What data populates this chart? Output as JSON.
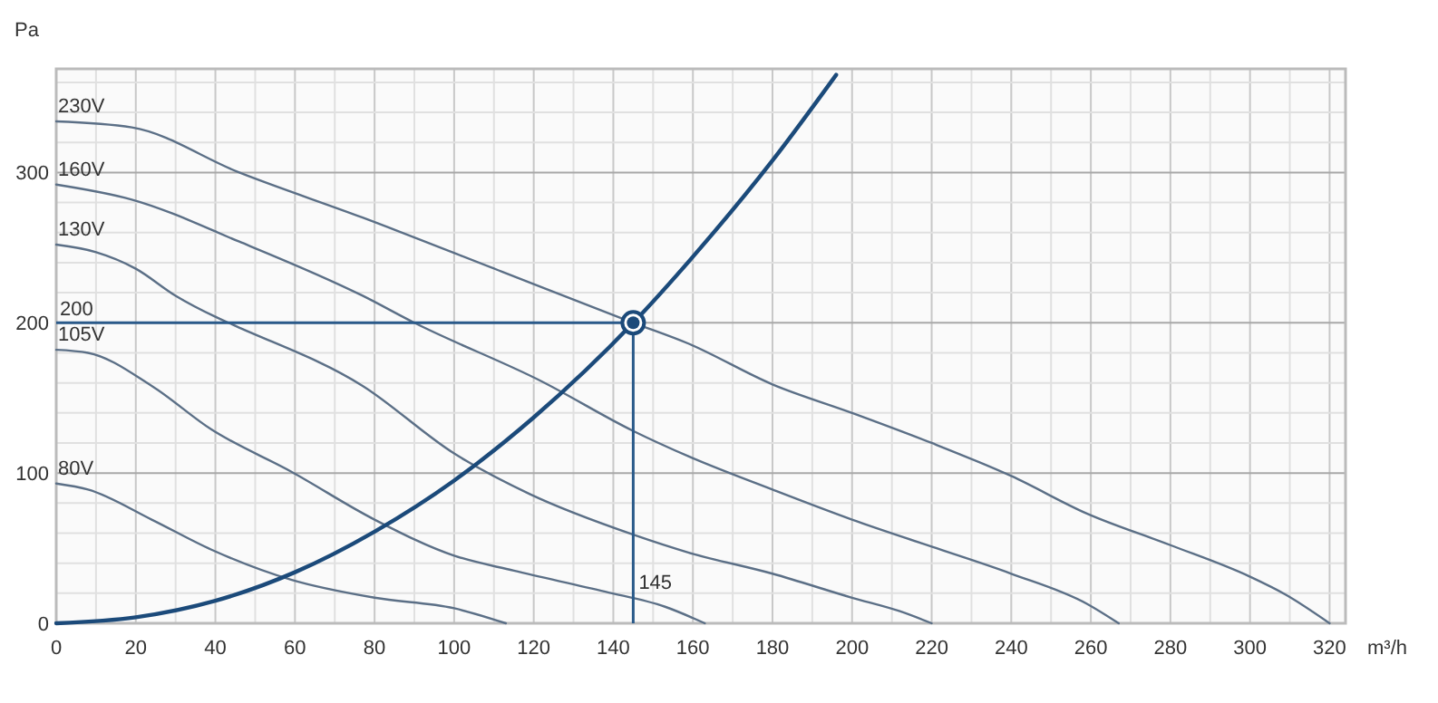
{
  "chart_data": {
    "type": "line",
    "xlabel": "m³/h",
    "ylabel": "Pa",
    "xlim": [
      0,
      324
    ],
    "ylim": [
      0,
      369
    ],
    "xticks": [
      0,
      {
        "value": 10,
        "label": null
      },
      20,
      {
        "value": 30,
        "label": null
      },
      40,
      {
        "value": 50,
        "label": null
      },
      60,
      {
        "value": 70,
        "label": null
      },
      80,
      {
        "value": 90,
        "label": null
      },
      100,
      {
        "value": 110,
        "label": null
      },
      120,
      {
        "value": 130,
        "label": null
      },
      140,
      {
        "value": 150,
        "label": null
      },
      160,
      {
        "value": 170,
        "label": null
      },
      180,
      {
        "value": 190,
        "label": null
      },
      200,
      {
        "value": 210,
        "label": null
      },
      220,
      {
        "value": 230,
        "label": null
      },
      240,
      {
        "value": 250,
        "label": null
      },
      260,
      {
        "value": 270,
        "label": null
      },
      280,
      {
        "value": 290,
        "label": null
      },
      300,
      {
        "value": 310,
        "label": null
      },
      320
    ],
    "yticks": [
      0,
      {
        "value": 20,
        "label": null
      },
      {
        "value": 40,
        "label": null
      },
      {
        "value": 60,
        "label": null
      },
      {
        "value": 80,
        "label": null
      },
      100,
      {
        "value": 120,
        "label": null
      },
      {
        "value": 140,
        "label": null
      },
      {
        "value": 160,
        "label": null
      },
      {
        "value": 180,
        "label": null
      },
      200,
      {
        "value": 220,
        "label": null
      },
      {
        "value": 240,
        "label": null
      },
      {
        "value": 260,
        "label": null
      },
      {
        "value": 280,
        "label": null
      },
      300,
      {
        "value": 320,
        "label": null
      },
      {
        "value": 340,
        "label": null
      },
      {
        "value": 360,
        "label": null
      }
    ],
    "grid": true,
    "marker": "none",
    "line_style": "solid",
    "series": [
      {
        "name": "230V",
        "color": "#5b6f86",
        "x": [
          0,
          19,
          46,
          77,
          112,
          145,
          159,
          180,
          200,
          220,
          240,
          259,
          280,
          300,
          309,
          320
        ],
        "values": [
          334,
          330,
          300,
          270,
          234,
          200,
          186,
          159,
          140,
          120,
          98,
          73,
          52,
          31,
          19,
          0
        ]
      },
      {
        "name": "160V",
        "color": "#5b6f86",
        "x": [
          0,
          19,
          46,
          77,
          90,
          122,
          145,
          159,
          180,
          200,
          220,
          240,
          259,
          267
        ],
        "values": [
          292,
          282,
          254,
          218,
          200,
          161,
          128,
          111,
          89,
          69,
          51,
          33,
          13,
          0
        ]
      },
      {
        "name": "130V",
        "color": "#5b6f86",
        "x": [
          0,
          10,
          20,
          30,
          40,
          45,
          77,
          100,
          119,
          145,
          159,
          180,
          200,
          212,
          220
        ],
        "values": [
          252,
          247,
          236,
          218,
          204,
          198,
          158,
          113,
          86,
          59,
          47,
          33,
          17,
          8,
          0
        ]
      },
      {
        "name": "105V",
        "color": "#5b6f86",
        "x": [
          0,
          8,
          24,
          39,
          59,
          80,
          100,
          115,
          138,
          153,
          163
        ],
        "values": [
          182,
          180,
          158,
          129,
          101,
          69,
          45,
          35,
          21,
          11,
          0
        ]
      },
      {
        "name": "80V",
        "color": "#5b6f86",
        "x": [
          0,
          8,
          24,
          39,
          59,
          80,
          100,
          113
        ],
        "values": [
          93,
          89,
          69,
          49,
          29,
          17,
          10,
          0
        ]
      },
      {
        "color": "#1b4a7a",
        "x": [
          0,
          20,
          40,
          60,
          80,
          100,
          120,
          145,
          160,
          180,
          196
        ],
        "values": [
          0,
          4,
          15,
          34,
          61,
          95,
          137,
          200,
          244,
          308,
          365
        ]
      },
      {
        "type": "scatter",
        "marker": "circle",
        "color": "#1b4a7a",
        "x": [
          145
        ],
        "values": [
          200
        ]
      }
    ],
    "ref_lines": [
      {
        "axis": "x",
        "value": 145,
        "label": "145",
        "color": "#2a5a8a"
      },
      {
        "axis": "y",
        "value": 200,
        "label": "200",
        "color": "#2a5a8a"
      }
    ]
  }
}
